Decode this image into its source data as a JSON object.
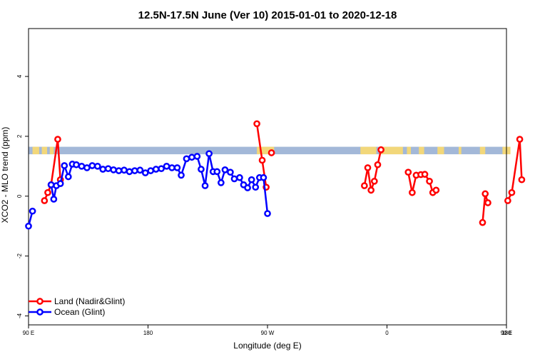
{
  "chart_data": {
    "type": "line",
    "title": "12.5N-17.5N June (Ver 10)   2015-01-01 to 2020-12-18",
    "xlabel": "Longitude (deg E)",
    "ylabel": "XCO2 - MLO trend (ppm)",
    "xlim": [
      90,
      450
    ],
    "ylim": [
      -4.3,
      5.6
    ],
    "x_tick_values": [
      90,
      180,
      270,
      360,
      450
    ],
    "x_tick_labels": [
      "90 E",
      "180",
      "90 W",
      "0",
      "90 E",
      "180"
    ],
    "x_tick_positions": [
      90,
      180,
      270,
      360,
      450,
      540
    ],
    "y_ticks": [
      -4,
      -2,
      0,
      2,
      4
    ],
    "legend_position": "bottom-left",
    "land_band": {
      "y_min": 1.4,
      "y_max": 1.65,
      "ocean_color": "#a3b8d8",
      "land_color": "#f2d77a"
    },
    "series": [
      {
        "name": "Land (Nadir&Glint)",
        "color": "#ff0000",
        "segments": [
          [
            [
              102,
              -0.15
            ],
            [
              104.5,
              0.12
            ],
            [
              107,
              0.38
            ],
            [
              112,
              1.9
            ],
            [
              114,
              0.55
            ]
          ],
          [
            [
              262,
              2.42
            ],
            [
              266,
              1.2
            ],
            [
              269,
              0.3
            ]
          ],
          [
            [
              273,
              1.45
            ]
          ],
          [
            [
              343,
              0.35
            ],
            [
              345.5,
              0.95
            ],
            [
              348,
              0.2
            ],
            [
              350.5,
              0.5
            ],
            [
              353,
              1.05
            ],
            [
              355.5,
              1.55
            ]
          ],
          [
            [
              376,
              0.8
            ],
            [
              379,
              0.12
            ],
            [
              382,
              0.7
            ],
            [
              385.5,
              0.72
            ],
            [
              388.5,
              0.73
            ],
            [
              392,
              0.5
            ],
            [
              394.5,
              0.12
            ],
            [
              397,
              0.2
            ]
          ],
          [
            [
              432,
              -0.88
            ],
            [
              434,
              0.08
            ],
            [
              436,
              -0.22
            ]
          ],
          [
            [
              451,
              -0.15
            ],
            [
              454,
              0.12
            ],
            [
              460,
              1.9
            ],
            [
              461.5,
              0.55
            ]
          ]
        ]
      },
      {
        "name": "Ocean (Glint)",
        "color": "#0000ff",
        "segments": [
          [
            [
              90,
              -1.0
            ],
            [
              93,
              -0.5
            ]
          ],
          [
            [
              107,
              0.38
            ],
            [
              109,
              -0.1
            ],
            [
              111,
              0.35
            ],
            [
              114,
              0.42
            ],
            [
              117,
              1.02
            ],
            [
              120,
              0.65
            ],
            [
              123,
              1.07
            ],
            [
              126,
              1.05
            ],
            [
              130,
              1.0
            ],
            [
              134,
              0.95
            ],
            [
              138,
              1.02
            ],
            [
              142,
              1.0
            ],
            [
              146,
              0.9
            ],
            [
              150,
              0.92
            ],
            [
              154,
              0.88
            ],
            [
              158,
              0.85
            ],
            [
              162,
              0.87
            ],
            [
              166,
              0.82
            ],
            [
              170,
              0.85
            ],
            [
              174,
              0.87
            ],
            [
              178,
              0.78
            ],
            [
              182,
              0.85
            ],
            [
              186,
              0.9
            ],
            [
              190,
              0.92
            ],
            [
              194,
              1.0
            ],
            [
              198,
              0.95
            ],
            [
              202,
              0.95
            ],
            [
              205,
              0.7
            ],
            [
              209,
              1.25
            ],
            [
              213,
              1.3
            ],
            [
              217,
              1.33
            ],
            [
              220,
              0.9
            ],
            [
              223,
              0.35
            ],
            [
              226,
              1.42
            ],
            [
              229,
              0.82
            ],
            [
              232,
              0.82
            ],
            [
              235,
              0.45
            ],
            [
              238,
              0.88
            ],
            [
              242,
              0.8
            ],
            [
              245,
              0.58
            ],
            [
              249,
              0.62
            ],
            [
              252,
              0.38
            ],
            [
              255,
              0.28
            ],
            [
              258,
              0.55
            ],
            [
              261,
              0.3
            ],
            [
              264,
              0.62
            ],
            [
              267,
              0.62
            ],
            [
              270,
              -0.58
            ]
          ]
        ]
      }
    ]
  }
}
